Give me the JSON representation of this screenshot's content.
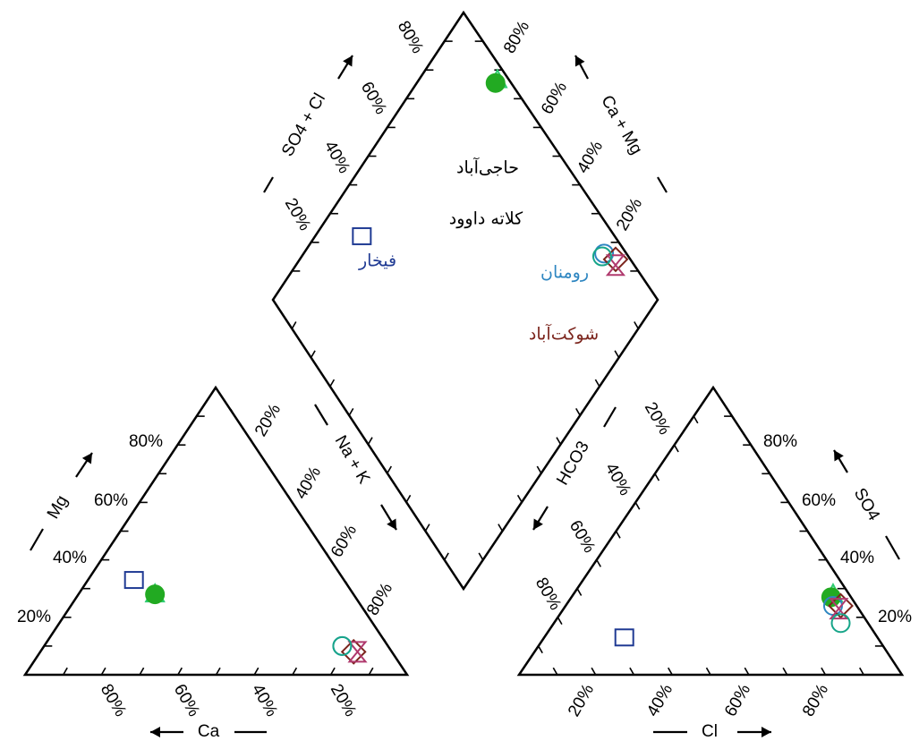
{
  "chart_data": {
    "type": "piper",
    "axes": {
      "cation_triangle": {
        "left_axis": {
          "label": "Mg",
          "ticks": [
            "80%",
            "60%",
            "40%",
            "20%"
          ]
        },
        "right_axis": {
          "label": "Na + K",
          "ticks": [
            "20%",
            "40%",
            "60%",
            "80%"
          ]
        },
        "bottom_axis": {
          "label": "Ca",
          "ticks": [
            "80%",
            "60%",
            "40%",
            "20%"
          ]
        }
      },
      "anion_triangle": {
        "left_axis": {
          "label": "HCO3",
          "ticks": [
            "20%",
            "40%",
            "60%",
            "80%"
          ]
        },
        "right_axis": {
          "label": "SO4",
          "ticks": [
            "80%",
            "60%",
            "40%",
            "20%"
          ]
        },
        "bottom_axis": {
          "label": "Cl",
          "ticks": [
            "20%",
            "40%",
            "60%",
            "80%"
          ]
        }
      },
      "diamond": {
        "upper_left_axis": {
          "label": "SO4 + Cl",
          "ticks": [
            "80%",
            "60%",
            "40%",
            "20%"
          ]
        },
        "upper_right_axis": {
          "label": "Ca + Mg",
          "ticks": [
            "80%",
            "60%",
            "40%",
            "20%"
          ]
        }
      }
    },
    "samples": [
      {
        "name": "حاجی‌آباد",
        "marker": "triangle",
        "color": "#2ecc71",
        "cation": {
          "Ca": 52,
          "Mg": 28,
          "NaK": 20
        },
        "anion": {
          "HCO3": 4,
          "SO4": 28,
          "Cl": 68
        },
        "diamond": {
          "SO4Cl": 96,
          "CaMg": 80
        }
      },
      {
        "name": "کلاته داوود",
        "marker": "filled-circle",
        "color": "#22aa22",
        "cation": {
          "Ca": 52,
          "Mg": 28,
          "NaK": 20
        },
        "anion": {
          "HCO3": 5,
          "SO4": 27,
          "Cl": 68
        },
        "diamond": {
          "SO4Cl": 95,
          "CaMg": 80
        }
      },
      {
        "name": "فیخار",
        "marker": "square",
        "color": "#1f3a93",
        "cation": {
          "Ca": 55,
          "Mg": 33,
          "NaK": 12
        },
        "anion": {
          "HCO3": 66,
          "SO4": 13,
          "Cl": 21
        },
        "diamond": {
          "SO4Cl": 34,
          "CaMg": 88
        }
      },
      {
        "name": "رومنان",
        "marker": "open-circle",
        "color": "#2e86c1",
        "cation": {
          "Ca": 12,
          "Mg": 10,
          "NaK": 78
        },
        "anion": {
          "HCO3": 6,
          "SO4": 24,
          "Cl": 70
        },
        "diamond": {
          "SO4Cl": 94,
          "CaMg": 22
        }
      },
      {
        "name": "شوکت‌آباد",
        "marker": "diamond",
        "color": "#7b241c",
        "cation": {
          "Ca": 10,
          "Mg": 8,
          "NaK": 82
        },
        "anion": {
          "HCO3": 4,
          "SO4": 24,
          "Cl": 72
        },
        "diamond": {
          "SO4Cl": 96,
          "CaMg": 18
        }
      },
      {
        "name": "",
        "marker": "hourglass",
        "color": "#b03a6e",
        "cation": {
          "Ca": 9,
          "Mg": 8,
          "NaK": 83
        },
        "anion": {
          "HCO3": 5,
          "SO4": 23,
          "Cl": 72
        },
        "diamond": {
          "SO4Cl": 95,
          "CaMg": 17
        }
      },
      {
        "name": "",
        "marker": "open-circle",
        "color": "#17a589",
        "cation": {
          "Ca": 12,
          "Mg": 10,
          "NaK": 78
        },
        "anion": {
          "HCO3": 7,
          "SO4": 18,
          "Cl": 75
        },
        "diamond": {
          "SO4Cl": 93,
          "CaMg": 22
        }
      }
    ],
    "colors": {
      "frame": "#000000",
      "arrow": "#000000"
    }
  }
}
